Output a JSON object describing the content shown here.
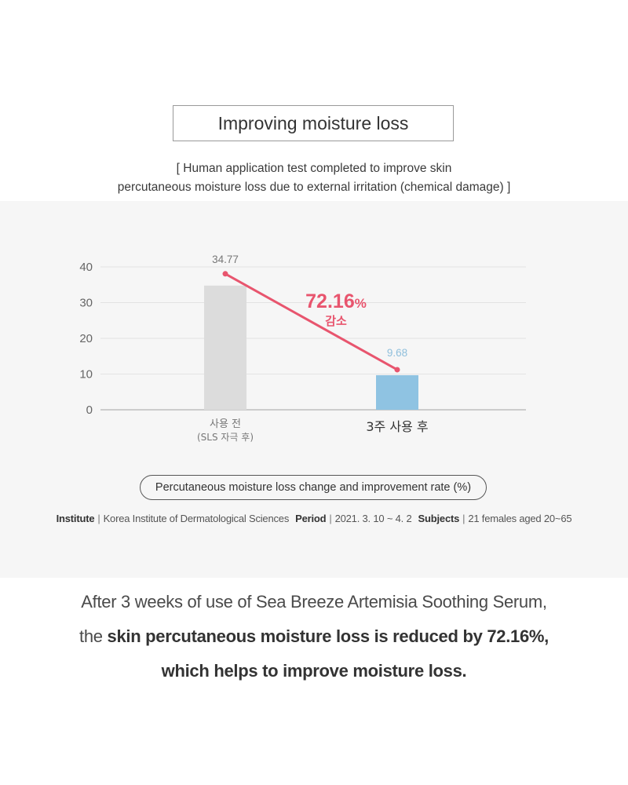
{
  "header": {
    "title": "Improving moisture loss",
    "subtitle_line1": "[ Human application test completed to improve skin",
    "subtitle_line2": "percutaneous moisture loss due to external irritation (chemical damage) ]"
  },
  "chart_data": {
    "type": "bar",
    "categories": [
      "사용 전\n(SLS 자극 후)",
      "3주 사용 후"
    ],
    "category_line1": [
      "사용 전",
      "3주 사용 후"
    ],
    "category_line2": [
      "(SLS 자극 후)",
      ""
    ],
    "values": [
      34.77,
      9.68
    ],
    "value_labels": [
      "34.77",
      "9.68"
    ],
    "ylim": [
      0,
      40
    ],
    "yticks": [
      0,
      10,
      20,
      30,
      40
    ],
    "grid": true,
    "bar_colors": [
      "#dcdcdc",
      "#8fc3e2"
    ],
    "value_label_colors": [
      "#777777",
      "#8fbfdc"
    ],
    "trend_color": "#e8556e",
    "annotation": {
      "value": "72.16",
      "unit": "%",
      "text": "감소"
    }
  },
  "caption": "Percutaneous moisture loss change and improvement rate (%)",
  "info": {
    "institute_label": "Institute",
    "institute_value": "Korea Institute of Dermatological Sciences",
    "period_label": "Period",
    "period_value": "2021. 3. 10 ~ 4. 2",
    "subjects_label": "Subjects",
    "subjects_value": "21 females aged 20~65",
    "separator": "|"
  },
  "summary": {
    "line1": "After 3 weeks of use of Sea Breeze Artemisia Soothing Serum,",
    "line2_prefix": "the ",
    "line2_bold": "skin percutaneous moisture loss is reduced by 72.16%,",
    "line3_bold": "which helps to improve moisture loss."
  }
}
